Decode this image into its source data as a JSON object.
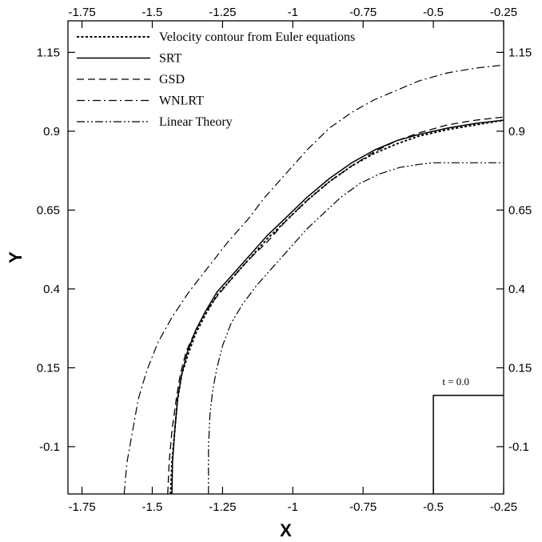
{
  "chart_data": {
    "type": "line",
    "title": "",
    "xlabel": "X",
    "ylabel": "Y",
    "xlim": [
      -1.8,
      -0.25
    ],
    "ylim": [
      -0.25,
      1.25
    ],
    "xticks": [
      "-1.75",
      "-1.5",
      "-1.25",
      "-1",
      "-0.75",
      "-0.5",
      "-0.25"
    ],
    "yticks": [
      "-0.1",
      "0.15",
      "0.4",
      "0.65",
      "0.9",
      "1.15"
    ],
    "legend_position": "top-left",
    "grid": false,
    "series": [
      {
        "name": "Velocity contour from Euler equations",
        "style": "dotted",
        "x": [
          -1.435,
          -1.43,
          -1.42,
          -1.41,
          -1.395,
          -1.37,
          -1.345,
          -1.31,
          -1.27,
          -1.21,
          -1.15,
          -1.09,
          -1.02,
          -0.95,
          -0.87,
          -0.79,
          -0.71,
          -0.63,
          -0.55,
          -0.45,
          -0.35,
          -0.25
        ],
        "y": [
          -0.25,
          -0.15,
          -0.05,
          0.05,
          0.13,
          0.2,
          0.26,
          0.32,
          0.38,
          0.44,
          0.5,
          0.56,
          0.62,
          0.68,
          0.74,
          0.79,
          0.83,
          0.86,
          0.885,
          0.905,
          0.92,
          0.935
        ]
      },
      {
        "name": "SRT",
        "style": "solid",
        "x": [
          -1.43,
          -1.428,
          -1.42,
          -1.41,
          -1.395,
          -1.375,
          -1.345,
          -1.31,
          -1.27,
          -1.21,
          -1.15,
          -1.09,
          -1.02,
          -0.95,
          -0.87,
          -0.79,
          -0.71,
          -0.63,
          -0.55,
          -0.45,
          -0.35,
          -0.25
        ],
        "y": [
          -0.25,
          -0.15,
          -0.05,
          0.05,
          0.13,
          0.2,
          0.27,
          0.33,
          0.39,
          0.45,
          0.51,
          0.57,
          0.63,
          0.69,
          0.75,
          0.8,
          0.84,
          0.87,
          0.89,
          0.91,
          0.925,
          0.935
        ]
      },
      {
        "name": "GSD",
        "style": "dashed",
        "x": [
          -1.445,
          -1.44,
          -1.43,
          -1.415,
          -1.4,
          -1.38,
          -1.35,
          -1.315,
          -1.275,
          -1.22,
          -1.16,
          -1.09,
          -1.02,
          -0.95,
          -0.87,
          -0.79,
          -0.71,
          -0.63,
          -0.55,
          -0.45,
          -0.35,
          -0.25
        ],
        "y": [
          -0.25,
          -0.15,
          -0.05,
          0.05,
          0.13,
          0.2,
          0.26,
          0.32,
          0.37,
          0.43,
          0.49,
          0.55,
          0.62,
          0.68,
          0.74,
          0.79,
          0.835,
          0.87,
          0.895,
          0.92,
          0.935,
          0.945
        ]
      },
      {
        "name": "WNLRT",
        "style": "dashdot",
        "x": [
          -1.6,
          -1.59,
          -1.57,
          -1.55,
          -1.52,
          -1.48,
          -1.43,
          -1.37,
          -1.3,
          -1.23,
          -1.16,
          -1.1,
          -1.03,
          -0.95,
          -0.87,
          -0.79,
          -0.71,
          -0.63,
          -0.55,
          -0.45,
          -0.35,
          -0.25
        ],
        "y": [
          -0.25,
          -0.15,
          -0.05,
          0.05,
          0.14,
          0.23,
          0.31,
          0.39,
          0.47,
          0.55,
          0.62,
          0.69,
          0.76,
          0.84,
          0.91,
          0.96,
          1.0,
          1.03,
          1.06,
          1.085,
          1.1,
          1.11
        ]
      },
      {
        "name": "Linear Theory",
        "style": "dashdotdot",
        "x": [
          -1.3,
          -1.3,
          -1.295,
          -1.285,
          -1.27,
          -1.25,
          -1.22,
          -1.18,
          -1.13,
          -1.07,
          -1.01,
          -0.95,
          -0.89,
          -0.83,
          -0.76,
          -0.69,
          -0.62,
          -0.55,
          -0.5,
          -0.45,
          -0.35,
          -0.25
        ],
        "y": [
          -0.25,
          -0.1,
          0.0,
          0.08,
          0.15,
          0.22,
          0.29,
          0.35,
          0.41,
          0.47,
          0.53,
          0.59,
          0.64,
          0.69,
          0.735,
          0.765,
          0.785,
          0.795,
          0.8,
          0.8,
          0.8,
          0.8
        ]
      },
      {
        "name": "",
        "style": "solid",
        "x": [
          -0.5,
          -0.5,
          -0.25
        ],
        "y": [
          -0.25,
          0.0625,
          0.0625
        ]
      }
    ],
    "annotations": [
      {
        "text": "t = 0.0",
        "x": -0.42,
        "y": 0.075
      }
    ]
  }
}
